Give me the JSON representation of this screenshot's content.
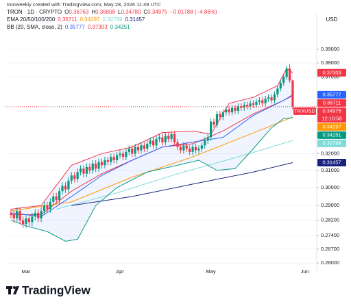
{
  "header": {
    "watermark": "tronweekly created with TradingView.com, May 28, 2026 11:49 UTC"
  },
  "chart_data": {
    "type": "candlestick",
    "symbol": "TRON · 1D · CRYPTO",
    "ohlc_legend": [
      {
        "key": "O",
        "value": "0.36763"
      },
      {
        "key": "H",
        "value": "0.36808"
      },
      {
        "key": "L",
        "value": "0.34780"
      },
      {
        "key": "C",
        "value": "0.34975"
      }
    ],
    "change": "−0.01788 (−4.86%)",
    "currency": "USD",
    "ticker_tag": "TRXUSD",
    "countdown": "12:10:58",
    "categories": [
      null,
      null,
      null,
      null,
      null,
      "Mar",
      null,
      null,
      null,
      null,
      null,
      null,
      null,
      null,
      null,
      null,
      null,
      null,
      null,
      null,
      null,
      null,
      null,
      null,
      null,
      null,
      null,
      null,
      null,
      null,
      null,
      null,
      null,
      null,
      null,
      null,
      "Apr",
      null,
      null,
      null,
      null,
      null,
      null,
      null,
      null,
      null,
      null,
      null,
      null,
      null,
      null,
      null,
      null,
      null,
      null,
      null,
      null,
      null,
      null,
      null,
      null,
      null,
      null,
      null,
      null,
      null,
      "May",
      null,
      null,
      null,
      null,
      null,
      null,
      null,
      null,
      null,
      null,
      null,
      null,
      null,
      null,
      null,
      null,
      null,
      null,
      null,
      null,
      null,
      null,
      null,
      null,
      null,
      null,
      null,
      null,
      null,
      null,
      "Jun"
    ],
    "open": [
      0.286,
      0.285,
      0.283,
      0.287,
      0.282,
      0.28,
      0.283,
      0.281,
      0.284,
      0.286,
      0.283,
      0.287,
      0.29,
      0.288,
      0.292,
      0.295,
      0.293,
      0.298,
      0.301,
      0.299,
      0.304,
      0.307,
      0.305,
      0.309,
      0.311,
      0.308,
      0.312,
      0.31,
      0.314,
      0.311,
      0.315,
      0.313,
      0.316,
      0.315,
      0.318,
      0.316,
      0.319,
      0.32,
      0.318,
      0.321,
      0.323,
      0.32,
      0.324,
      0.322,
      0.325,
      0.323,
      0.326,
      0.328,
      0.325,
      0.329,
      0.33,
      0.327,
      0.331,
      0.329,
      0.332,
      0.327,
      0.324,
      0.322,
      0.325,
      0.323,
      0.321,
      0.324,
      0.322,
      0.323,
      0.325,
      0.328,
      0.33,
      0.34,
      0.338,
      0.345,
      0.343,
      0.346,
      0.348,
      0.346,
      0.349,
      0.347,
      0.35,
      0.349,
      0.351,
      0.35,
      0.352,
      0.351,
      0.353,
      0.354,
      0.352,
      0.355,
      0.356,
      0.354,
      0.358,
      0.362,
      0.366,
      0.37,
      0.376,
      0.36763,
      null,
      null,
      null,
      null
    ],
    "high": [
      0.288,
      0.287,
      0.289,
      0.289,
      0.284,
      0.285,
      0.285,
      0.286,
      0.288,
      0.288,
      0.289,
      0.292,
      0.292,
      0.294,
      0.297,
      0.297,
      0.3,
      0.303,
      0.303,
      0.306,
      0.309,
      0.309,
      0.311,
      0.313,
      0.313,
      0.314,
      0.314,
      0.316,
      0.316,
      0.317,
      0.317,
      0.318,
      0.318,
      0.32,
      0.32,
      0.321,
      0.322,
      0.322,
      0.323,
      0.325,
      0.325,
      0.326,
      0.326,
      0.327,
      0.327,
      0.328,
      0.33,
      0.33,
      0.331,
      0.332,
      0.332,
      0.333,
      0.333,
      0.334,
      0.334,
      0.329,
      0.326,
      0.327,
      0.327,
      0.325,
      0.326,
      0.326,
      0.325,
      0.327,
      0.33,
      0.332,
      0.342,
      0.342,
      0.347,
      0.347,
      0.348,
      0.35,
      0.35,
      0.351,
      0.351,
      0.352,
      0.352,
      0.353,
      0.353,
      0.354,
      0.354,
      0.355,
      0.356,
      0.356,
      0.357,
      0.358,
      0.358,
      0.36,
      0.364,
      0.368,
      0.372,
      0.378,
      0.379,
      0.36808,
      null,
      null,
      null,
      null
    ],
    "low": [
      0.283,
      0.281,
      0.281,
      0.28,
      0.278,
      0.278,
      0.279,
      0.279,
      0.282,
      0.281,
      0.281,
      0.285,
      0.286,
      0.286,
      0.29,
      0.291,
      0.291,
      0.296,
      0.297,
      0.297,
      0.302,
      0.303,
      0.303,
      0.307,
      0.306,
      0.306,
      0.308,
      0.308,
      0.309,
      0.309,
      0.311,
      0.311,
      0.313,
      0.313,
      0.314,
      0.314,
      0.317,
      0.316,
      0.316,
      0.319,
      0.318,
      0.318,
      0.32,
      0.32,
      0.321,
      0.321,
      0.324,
      0.323,
      0.323,
      0.327,
      0.325,
      0.325,
      0.327,
      0.327,
      0.325,
      0.322,
      0.32,
      0.32,
      0.321,
      0.319,
      0.319,
      0.32,
      0.32,
      0.321,
      0.323,
      0.326,
      0.328,
      0.336,
      0.336,
      0.341,
      0.341,
      0.344,
      0.344,
      0.344,
      0.345,
      0.345,
      0.347,
      0.347,
      0.348,
      0.348,
      0.349,
      0.349,
      0.351,
      0.35,
      0.35,
      0.353,
      0.352,
      0.352,
      0.356,
      0.36,
      0.364,
      0.368,
      0.366,
      0.3478,
      null,
      null,
      null,
      null
    ],
    "close": [
      0.285,
      0.283,
      0.287,
      0.282,
      0.28,
      0.283,
      0.281,
      0.284,
      0.286,
      0.283,
      0.287,
      0.29,
      0.288,
      0.292,
      0.295,
      0.293,
      0.298,
      0.301,
      0.299,
      0.304,
      0.307,
      0.305,
      0.309,
      0.311,
      0.308,
      0.312,
      0.31,
      0.314,
      0.311,
      0.315,
      0.313,
      0.316,
      0.315,
      0.318,
      0.316,
      0.319,
      0.32,
      0.318,
      0.321,
      0.323,
      0.32,
      0.324,
      0.322,
      0.325,
      0.323,
      0.326,
      0.328,
      0.325,
      0.329,
      0.33,
      0.327,
      0.331,
      0.329,
      0.332,
      0.327,
      0.324,
      0.322,
      0.325,
      0.323,
      0.321,
      0.324,
      0.322,
      0.323,
      0.325,
      0.328,
      0.33,
      0.34,
      0.338,
      0.345,
      0.343,
      0.346,
      0.348,
      0.346,
      0.349,
      0.347,
      0.35,
      0.349,
      0.351,
      0.35,
      0.352,
      0.351,
      0.353,
      0.354,
      0.352,
      0.355,
      0.356,
      0.354,
      0.358,
      0.362,
      0.366,
      0.37,
      0.376,
      0.36763,
      0.34975,
      null,
      null,
      null,
      null
    ],
    "up_color": "#089981",
    "down_color": "#f23645",
    "ylim": [
      0.2564,
      0.4172
    ],
    "log_scale": true,
    "yticks": [
      {
        "value": 0.39,
        "label": "0.39000"
      },
      {
        "value": 0.38,
        "label": "0.38000"
      },
      {
        "value": 0.37,
        "label": "0.37000"
      },
      {
        "value": 0.32,
        "label": "0.32000"
      },
      {
        "value": 0.31,
        "label": "0.31000"
      },
      {
        "value": 0.3,
        "label": "0.30000"
      },
      {
        "value": 0.29,
        "label": "0.29000"
      },
      {
        "value": 0.282,
        "label": "0.28200"
      },
      {
        "value": 0.274,
        "label": "0.27400"
      },
      {
        "value": 0.267,
        "label": "0.26700"
      },
      {
        "value": 0.26,
        "label": "0.26000"
      }
    ],
    "grid": true,
    "indicators": [
      {
        "label": "EMA 20/50/100/200",
        "lines": [
          {
            "color": "#f23645",
            "x": [
              0,
              10,
              20,
              30,
              40,
              50,
              60,
              70,
              80,
              90,
              93
            ],
            "values": [
              0.285,
              0.285,
              0.298,
              0.308,
              0.316,
              0.324,
              0.326,
              0.334,
              0.345,
              0.354,
              0.35711
            ]
          },
          {
            "color": "#ff9800",
            "x": [
              0,
              20,
              40,
              60,
              75,
              93
            ],
            "values": [
              0.287,
              0.292,
              0.306,
              0.318,
              0.329,
              0.34297
            ]
          },
          {
            "color": "#7fdbda",
            "x": [
              15,
              35,
              55,
              75,
              93
            ],
            "values": [
              0.288,
              0.297,
              0.308,
              0.318,
              0.32799
            ]
          },
          {
            "color": "#1a237e",
            "x": [
              20,
              40,
              60,
              80,
              93
            ],
            "values": [
              0.29,
              0.295,
              0.302,
              0.309,
              0.31457
            ]
          }
        ]
      },
      {
        "label": "BB (20, SMA, close, 2)",
        "fill": "#2962ff",
        "lines": [
          {
            "color": "#2962ff",
            "x": [
              0,
              10,
              20,
              30,
              40,
              50,
              60,
              70,
              80,
              90,
              93
            ],
            "values": [
              0.286,
              0.284,
              0.295,
              0.307,
              0.316,
              0.324,
              0.327,
              0.33,
              0.344,
              0.354,
              0.35777
            ]
          },
          {
            "color": "#f23645",
            "x": [
              0,
              10,
              20,
              30,
              40,
              50,
              60,
              66,
              72,
              80,
              88,
              91,
              93
            ],
            "values": [
              0.288,
              0.29,
              0.313,
              0.32,
              0.324,
              0.333,
              0.334,
              0.332,
              0.352,
              0.356,
              0.364,
              0.376,
              0.37303
            ]
          },
          {
            "color": "#089981",
            "x": [
              0,
              5,
              12,
              18,
              22,
              28,
              35,
              45,
              55,
              62,
              68,
              74,
              80,
              86,
              90,
              93
            ],
            "values": [
              0.282,
              0.279,
              0.276,
              0.271,
              0.272,
              0.29,
              0.3,
              0.309,
              0.313,
              0.316,
              0.31,
              0.311,
              0.323,
              0.336,
              0.342,
              0.34251
            ]
          }
        ]
      }
    ]
  },
  "footer": {
    "brand": "TradingView"
  }
}
